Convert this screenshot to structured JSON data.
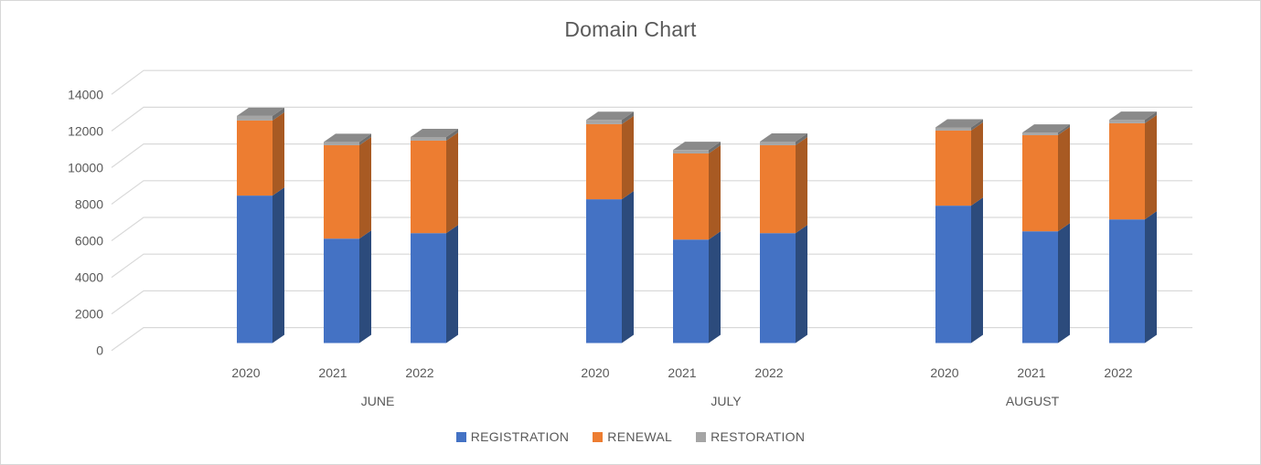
{
  "window": {
    "background": "#ffffff",
    "border_color": "#d7d7d7"
  },
  "chart": {
    "title_color": "#595959",
    "axis_text_color": "#595959",
    "gridline_color": "#d9d9d9"
  },
  "chart_data": {
    "type": "bar",
    "stacked": true,
    "projection": "3d",
    "title": "Domain Chart",
    "groups": [
      "JUNE",
      "JULY",
      "AUGUST"
    ],
    "categories": [
      "2020",
      "2021",
      "2022"
    ],
    "category_order_note": "values listed as JUNE 2020, JUNE 2021, JUNE 2022, JULY 2020, JULY 2021, JULY 2022, AUGUST 2020, AUGUST 2021, AUGUST 2022",
    "series": [
      {
        "name": "REGISTRATION",
        "color": "#4472C4",
        "side_color": "#2C4B7C",
        "top_color": "#5A83CE",
        "values": [
          8050,
          5700,
          6000,
          7850,
          5650,
          6000,
          7500,
          6100,
          6750
        ]
      },
      {
        "name": "RENEWAL",
        "color": "#ED7D31",
        "side_color": "#A85A23",
        "top_color": "#F0955B",
        "values": [
          4100,
          5100,
          5050,
          4100,
          4700,
          4800,
          4100,
          5250,
          5250
        ]
      },
      {
        "name": "RESTORATION",
        "color": "#A5A5A5",
        "side_color": "#6F6F6F",
        "top_color": "#8A8A8A",
        "values": [
          250,
          180,
          200,
          230,
          190,
          200,
          170,
          140,
          190
        ]
      }
    ],
    "ylim": [
      0,
      14000
    ],
    "ytick_step": 2000,
    "ytick_labels": [
      "0",
      "2000",
      "4000",
      "6000",
      "8000",
      "10000",
      "12000",
      "14000"
    ],
    "grid": true,
    "legend_position": "bottom"
  }
}
